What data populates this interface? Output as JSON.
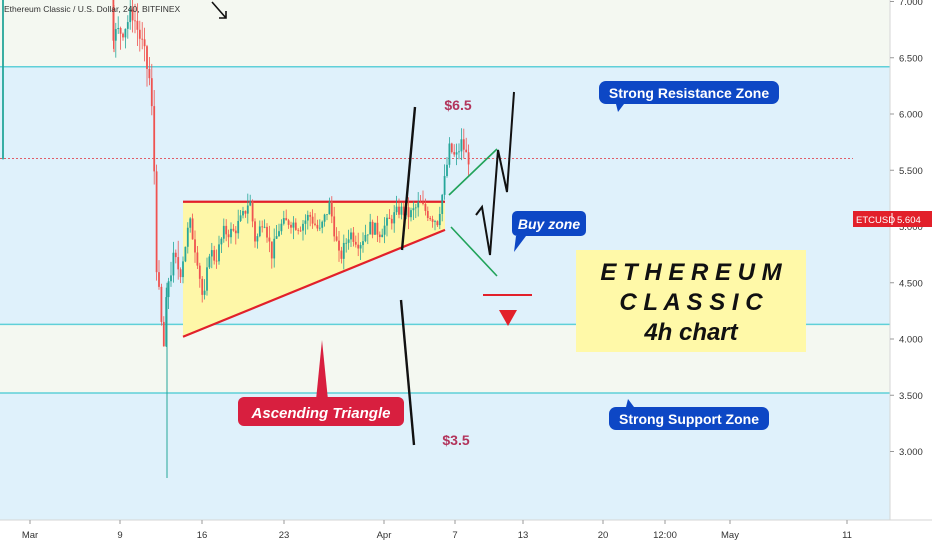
{
  "header": {
    "symbol_line": "Ethereum Classic / U.S. Dollar, 240, BITFINEX"
  },
  "chart_data": {
    "type": "candlestick",
    "title": "",
    "xlabel": "",
    "ylabel": "",
    "ylim": [
      2.95,
      7.55
    ],
    "y_ticks": [
      "7.500",
      "7.000",
      "6.500",
      "6.000",
      "5.500",
      "5.000",
      "4.500",
      "4.000",
      "3.500",
      "3.000"
    ],
    "x_ticks": [
      "Mar",
      "9",
      "16",
      "23",
      "Apr",
      "7",
      "13",
      "20",
      "12:00",
      "May",
      "11"
    ],
    "price_tag": {
      "symbol": "ETCUSD",
      "value": "5.604",
      "price": 5.604
    },
    "zones": [
      {
        "name": "Strong Resistance Zone",
        "from": 6.42,
        "to": 7.02
      },
      {
        "name": "Strong Support Zone",
        "from": 3.52,
        "to": 4.13
      }
    ],
    "triangle": {
      "top": 5.22,
      "bottom_start": 4.02,
      "bottom_end": 4.97
    },
    "candles": [],
    "annotations": {
      "resistance_label": "Strong Resistance Zone",
      "support_label": "Strong Support Zone",
      "triangle_label": "Ascending Triangle",
      "buy_label": "Buy zone",
      "target_high": "$6.5",
      "target_low": "$3.5",
      "title_line1": "E T H E R E U M",
      "title_line2": "C L A S S I C",
      "title_line3": "4h chart"
    },
    "colors": {
      "zone_line": "#5fd0d8",
      "zone_fill": "#f4f8f1",
      "up": "#26a69a",
      "down": "#ef5350",
      "triangle_fill": "#fef7a8",
      "triangle_line": "#e2202a",
      "flag": "#21a35a",
      "label_blue": "#0d47c5",
      "label_red": "#d81f3f",
      "target_text": "#b2345b",
      "title_box": "#fff9a8"
    }
  }
}
